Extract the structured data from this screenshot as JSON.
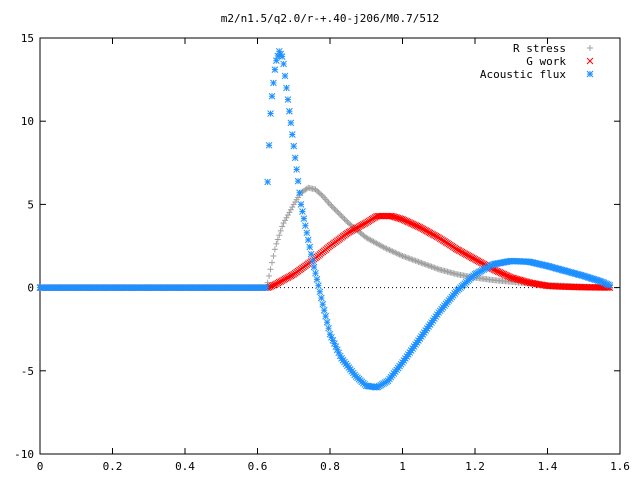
{
  "chart_data": {
    "type": "scatter",
    "title": "m2/n1.5/q2.0/r-+.40-j206/M0.7/512",
    "xlabel": "",
    "ylabel": "",
    "xlim": [
      0,
      1.6
    ],
    "ylim": [
      -10,
      15
    ],
    "x_ticks": [
      "0",
      "0.2",
      "0.4",
      "0.6",
      "0.8",
      "1",
      "1.2",
      "1.4",
      "1.6"
    ],
    "y_ticks": [
      "15",
      "10",
      "5",
      "0",
      "-5",
      "-10"
    ],
    "grid": false,
    "legend_position": "top-right",
    "series": [
      {
        "name": "R stress",
        "marker": "plus",
        "color": "#a0a0a0",
        "points": [
          [
            0.0,
            0
          ],
          [
            0.1,
            0
          ],
          [
            0.2,
            0
          ],
          [
            0.3,
            0
          ],
          [
            0.4,
            0
          ],
          [
            0.5,
            0
          ],
          [
            0.6,
            0
          ],
          [
            0.625,
            0
          ],
          [
            0.635,
            1.0
          ],
          [
            0.65,
            2.5
          ],
          [
            0.67,
            3.8
          ],
          [
            0.7,
            5.0
          ],
          [
            0.72,
            5.7
          ],
          [
            0.74,
            6.0
          ],
          [
            0.76,
            5.9
          ],
          [
            0.78,
            5.5
          ],
          [
            0.8,
            5.0
          ],
          [
            0.85,
            3.9
          ],
          [
            0.9,
            3.0
          ],
          [
            0.95,
            2.4
          ],
          [
            1.0,
            1.9
          ],
          [
            1.05,
            1.5
          ],
          [
            1.1,
            1.1
          ],
          [
            1.15,
            0.8
          ],
          [
            1.2,
            0.6
          ],
          [
            1.25,
            0.45
          ],
          [
            1.3,
            0.35
          ],
          [
            1.35,
            0.25
          ],
          [
            1.4,
            0.15
          ],
          [
            1.45,
            0.1
          ],
          [
            1.5,
            0.05
          ],
          [
            1.55,
            0.02
          ],
          [
            1.575,
            0
          ]
        ]
      },
      {
        "name": "G work",
        "marker": "cross",
        "color": "#ff0000",
        "points": [
          [
            0.0,
            0
          ],
          [
            0.1,
            0
          ],
          [
            0.2,
            0
          ],
          [
            0.3,
            0
          ],
          [
            0.4,
            0
          ],
          [
            0.5,
            0
          ],
          [
            0.6,
            0
          ],
          [
            0.63,
            0
          ],
          [
            0.65,
            0.2
          ],
          [
            0.7,
            0.8
          ],
          [
            0.75,
            1.6
          ],
          [
            0.8,
            2.5
          ],
          [
            0.85,
            3.3
          ],
          [
            0.9,
            3.9
          ],
          [
            0.93,
            4.3
          ],
          [
            0.97,
            4.3
          ],
          [
            1.0,
            4.1
          ],
          [
            1.05,
            3.6
          ],
          [
            1.1,
            3.0
          ],
          [
            1.15,
            2.3
          ],
          [
            1.2,
            1.7
          ],
          [
            1.25,
            1.1
          ],
          [
            1.3,
            0.6
          ],
          [
            1.35,
            0.3
          ],
          [
            1.4,
            0.1
          ],
          [
            1.45,
            0.05
          ],
          [
            1.5,
            0.02
          ],
          [
            1.575,
            0
          ]
        ]
      },
      {
        "name": "Acoustic flux",
        "marker": "star",
        "color": "#1e90ff",
        "points": [
          [
            0.0,
            0
          ],
          [
            0.1,
            0
          ],
          [
            0.2,
            0
          ],
          [
            0.3,
            0
          ],
          [
            0.4,
            0
          ],
          [
            0.5,
            0
          ],
          [
            0.6,
            0
          ],
          [
            0.625,
            0
          ],
          [
            0.627,
            5.8
          ],
          [
            0.635,
            10.2
          ],
          [
            0.64,
            11.5
          ],
          [
            0.65,
            13.5
          ],
          [
            0.66,
            14.2
          ],
          [
            0.67,
            13.8
          ],
          [
            0.68,
            12.0
          ],
          [
            0.7,
            8.5
          ],
          [
            0.72,
            5.0
          ],
          [
            0.75,
            1.8
          ],
          [
            0.78,
            -1.0
          ],
          [
            0.8,
            -2.8
          ],
          [
            0.83,
            -4.2
          ],
          [
            0.87,
            -5.3
          ],
          [
            0.9,
            -5.9
          ],
          [
            0.93,
            -6.0
          ],
          [
            0.96,
            -5.6
          ],
          [
            1.0,
            -4.5
          ],
          [
            1.05,
            -3.0
          ],
          [
            1.1,
            -1.5
          ],
          [
            1.15,
            -0.2
          ],
          [
            1.2,
            0.8
          ],
          [
            1.25,
            1.4
          ],
          [
            1.3,
            1.6
          ],
          [
            1.35,
            1.55
          ],
          [
            1.4,
            1.3
          ],
          [
            1.45,
            1.0
          ],
          [
            1.5,
            0.7
          ],
          [
            1.55,
            0.35
          ],
          [
            1.575,
            0.1
          ]
        ]
      }
    ]
  }
}
